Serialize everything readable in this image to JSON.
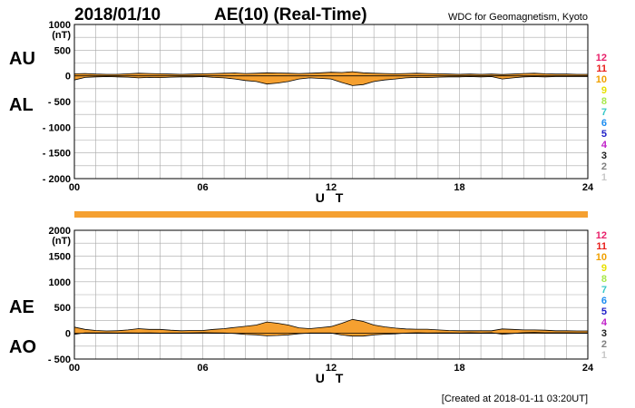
{
  "header": {
    "date": "2018/01/10",
    "title": "AE(10) (Real-Time)",
    "source": "WDC for Geomagnetism, Kyoto"
  },
  "footer": {
    "created": "[Created at 2018-01-11 03:20UT]"
  },
  "legend_numbers": {
    "labels": [
      "12",
      "11",
      "10",
      "9",
      "8",
      "7",
      "6",
      "5",
      "4",
      "3",
      "2",
      "1"
    ],
    "colors": [
      "#e8206a",
      "#e8201c",
      "#f0a000",
      "#e8e000",
      "#a8e84c",
      "#38c8c8",
      "#1c8cf0",
      "#2020c8",
      "#c020c8",
      "#202020",
      "#808080",
      "#c8c8c8"
    ]
  },
  "colors": {
    "fill": "#f5a030",
    "grid": "#a8a8a8",
    "bar": "#f5a030"
  },
  "chart_data": [
    {
      "type": "area",
      "title": "AU / AL",
      "labels_left": [
        "AU",
        "AL"
      ],
      "unit": "(nT)",
      "xlabel": "U T",
      "xlim": [
        0,
        24
      ],
      "ylim": [
        -2000,
        1000
      ],
      "yticks": [
        1000,
        500,
        0,
        -500,
        -1000,
        -1500,
        -2000
      ],
      "ytick_labels": [
        "1000",
        "500",
        "0",
        "- 500",
        "- 1000",
        "- 1500",
        "- 2000"
      ],
      "xticks": [
        0,
        6,
        12,
        18,
        24
      ],
      "xtick_labels": [
        "00",
        "06",
        "12",
        "18",
        "24"
      ],
      "grid": true,
      "series": [
        {
          "name": "AU",
          "x": [
            0,
            0.5,
            1,
            1.5,
            2,
            2.5,
            3,
            3.5,
            4,
            4.5,
            5,
            5.5,
            6,
            6.5,
            7,
            7.5,
            8,
            8.5,
            9,
            9.5,
            10,
            10.5,
            11,
            11.5,
            12,
            12.5,
            13,
            13.5,
            14,
            14.5,
            15,
            15.5,
            16,
            16.5,
            17,
            17.5,
            18,
            18.5,
            19,
            19.5,
            20,
            20.5,
            21,
            21.5,
            22,
            22.5,
            23,
            23.5,
            24
          ],
          "values": [
            40,
            45,
            35,
            30,
            30,
            40,
            50,
            45,
            40,
            35,
            30,
            35,
            40,
            45,
            50,
            55,
            45,
            50,
            60,
            55,
            50,
            45,
            50,
            60,
            70,
            65,
            80,
            60,
            50,
            45,
            40,
            45,
            50,
            45,
            40,
            35,
            30,
            35,
            30,
            35,
            25,
            35,
            45,
            50,
            40,
            35,
            35,
            30,
            30
          ]
        },
        {
          "name": "AL",
          "x": [
            0,
            0.5,
            1,
            1.5,
            2,
            2.5,
            3,
            3.5,
            4,
            4.5,
            5,
            5.5,
            6,
            6.5,
            7,
            7.5,
            8,
            8.5,
            9,
            9.5,
            10,
            10.5,
            11,
            11.5,
            12,
            12.5,
            13,
            13.5,
            14,
            14.5,
            15,
            15.5,
            16,
            16.5,
            17,
            17.5,
            18,
            18.5,
            19,
            19.5,
            20,
            20.5,
            21,
            21.5,
            22,
            22.5,
            23,
            23.5,
            24
          ],
          "values": [
            -80,
            -30,
            -20,
            -15,
            -20,
            -25,
            -40,
            -30,
            -35,
            -25,
            -20,
            -20,
            -15,
            -30,
            -40,
            -60,
            -90,
            -110,
            -160,
            -140,
            -110,
            -60,
            -40,
            -50,
            -60,
            -130,
            -190,
            -170,
            -110,
            -80,
            -60,
            -40,
            -30,
            -35,
            -25,
            -20,
            -20,
            -15,
            -20,
            -15,
            -60,
            -40,
            -20,
            -15,
            -20,
            -15,
            -15,
            -15,
            -15
          ]
        }
      ]
    },
    {
      "type": "area",
      "title": "AE / AO",
      "labels_left": [
        "AE",
        "AO"
      ],
      "unit": "(nT)",
      "xlabel": "U T",
      "xlim": [
        0,
        24
      ],
      "ylim": [
        -500,
        2000
      ],
      "yticks": [
        2000,
        1500,
        1000,
        500,
        0,
        -500
      ],
      "ytick_labels": [
        "2000",
        "1500",
        "1000",
        "500",
        "0",
        "- 500"
      ],
      "xticks": [
        0,
        6,
        12,
        18,
        24
      ],
      "xtick_labels": [
        "00",
        "06",
        "12",
        "18",
        "24"
      ],
      "grid": true,
      "series": [
        {
          "name": "AE",
          "x": [
            0,
            0.5,
            1,
            1.5,
            2,
            2.5,
            3,
            3.5,
            4,
            4.5,
            5,
            5.5,
            6,
            6.5,
            7,
            7.5,
            8,
            8.5,
            9,
            9.5,
            10,
            10.5,
            11,
            11.5,
            12,
            12.5,
            13,
            13.5,
            14,
            14.5,
            15,
            15.5,
            16,
            16.5,
            17,
            17.5,
            18,
            18.5,
            19,
            19.5,
            20,
            20.5,
            21,
            21.5,
            22,
            22.5,
            23,
            23.5,
            24
          ],
          "values": [
            120,
            75,
            55,
            45,
            50,
            65,
            90,
            75,
            75,
            60,
            50,
            55,
            55,
            75,
            90,
            115,
            135,
            160,
            220,
            195,
            160,
            105,
            90,
            110,
            130,
            195,
            270,
            230,
            160,
            125,
            100,
            85,
            80,
            80,
            65,
            55,
            50,
            50,
            50,
            50,
            85,
            75,
            65,
            65,
            60,
            50,
            50,
            45,
            45
          ]
        },
        {
          "name": "AO",
          "x": [
            0,
            0.5,
            1,
            1.5,
            2,
            2.5,
            3,
            3.5,
            4,
            4.5,
            5,
            5.5,
            6,
            6.5,
            7,
            7.5,
            8,
            8.5,
            9,
            9.5,
            10,
            10.5,
            11,
            11.5,
            12,
            12.5,
            13,
            13.5,
            14,
            14.5,
            15,
            15.5,
            16,
            16.5,
            17,
            17.5,
            18,
            18.5,
            19,
            19.5,
            20,
            20.5,
            21,
            21.5,
            22,
            22.5,
            23,
            23.5,
            24
          ],
          "values": [
            -20,
            8,
            8,
            8,
            5,
            8,
            5,
            8,
            3,
            5,
            5,
            8,
            13,
            8,
            5,
            -3,
            -23,
            -30,
            -50,
            -43,
            -30,
            -8,
            5,
            5,
            5,
            -33,
            -55,
            -55,
            -30,
            -18,
            -10,
            3,
            10,
            5,
            8,
            8,
            5,
            10,
            5,
            10,
            -18,
            -3,
            13,
            18,
            10,
            10,
            10,
            8,
            8
          ]
        }
      ]
    }
  ]
}
